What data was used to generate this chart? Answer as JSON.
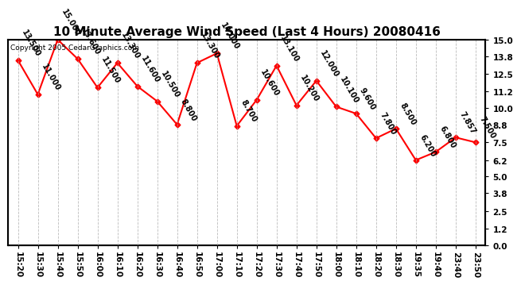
{
  "title": "10 Minute Average Wind Speed (Last 4 Hours) 20080416",
  "copyright": "Copyright 2005 CedarGraphics.com",
  "times": [
    "15:20",
    "15:30",
    "15:40",
    "15:50",
    "16:00",
    "16:10",
    "16:20",
    "16:30",
    "16:40",
    "16:50",
    "17:00",
    "17:10",
    "17:20",
    "17:30",
    "17:40",
    "17:50",
    "18:00",
    "18:10",
    "18:20",
    "18:30",
    "19:35",
    "19:40",
    "23:40",
    "23:50"
  ],
  "values": [
    13.5,
    11.0,
    15.0,
    13.6,
    11.5,
    13.3,
    11.6,
    10.5,
    8.8,
    13.3,
    14.0,
    8.7,
    10.6,
    13.1,
    10.2,
    12.0,
    10.1,
    9.6,
    7.8,
    8.5,
    6.2,
    6.8,
    7.857,
    7.5
  ],
  "labels": [
    "13.500",
    "11.000",
    "15.000",
    "13.600",
    "11.500",
    "13.300",
    "11.600",
    "10.500",
    "8.800",
    "13.300",
    "14.000",
    "8.700",
    "10.600",
    "13.100",
    "10.200",
    "12.000",
    "10.100",
    "9.600",
    "7.800",
    "8.500",
    "6.200",
    "6.800",
    "7.857",
    "7.500"
  ],
  "line_color": "#ff0000",
  "marker_color": "#ff0000",
  "bg_color": "#ffffff",
  "grid_color": "#aaaaaa",
  "text_color": "#000000",
  "ylim": [
    0.0,
    15.0
  ],
  "yticks": [
    0.0,
    1.2,
    2.5,
    3.8,
    5.0,
    6.2,
    7.5,
    8.8,
    10.0,
    11.2,
    12.5,
    13.8,
    15.0
  ],
  "title_fontsize": 11,
  "label_fontsize": 7,
  "tick_fontsize": 7.5,
  "copyright_fontsize": 6.5
}
